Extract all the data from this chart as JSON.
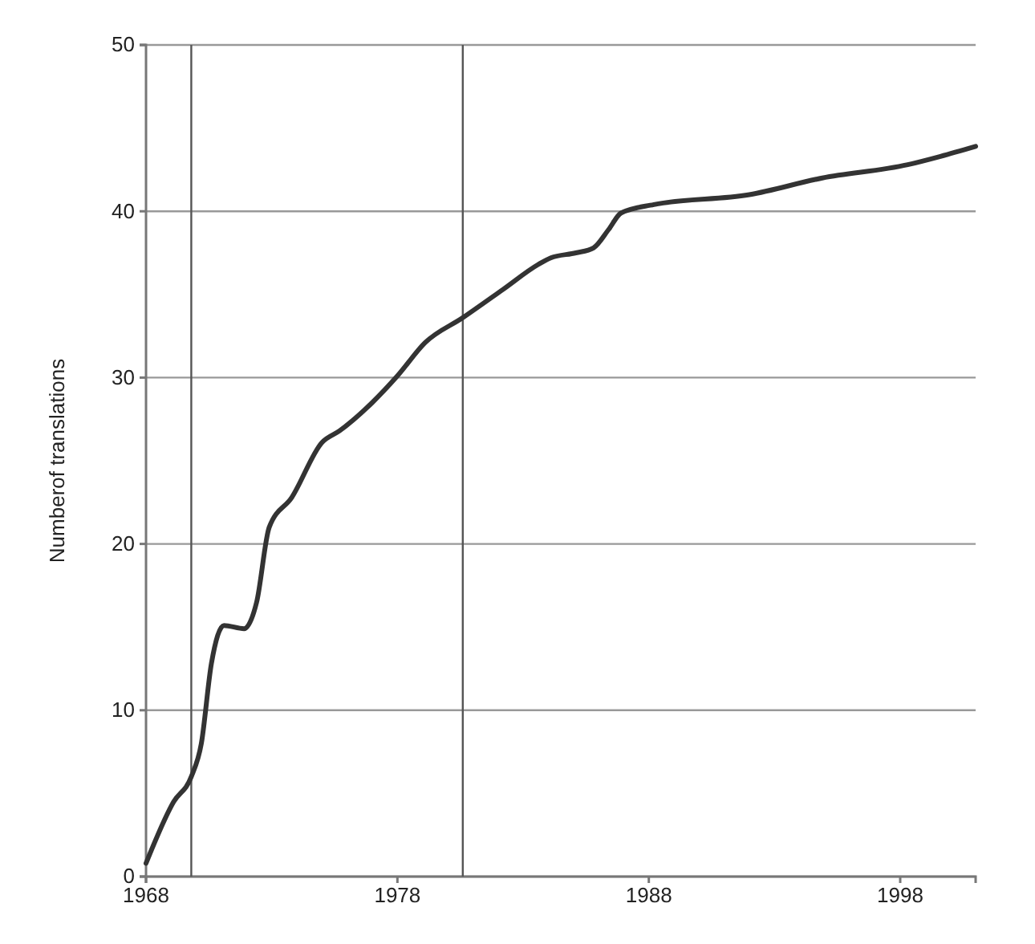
{
  "chart_data": {
    "type": "line",
    "ylabel": "Numberof translations",
    "x": [
      1968,
      1969.1,
      1969.8,
      1970.2,
      1970.6,
      1971.1,
      1971.9,
      1972.4,
      1972.9,
      1973.8,
      1975.0,
      1975.7,
      1977.0,
      1978.0,
      1979.1,
      1980.6,
      1982.2,
      1983.6,
      1984.1,
      1985.1,
      1985.8,
      1986.4,
      1986.9,
      1988.2,
      1992.0,
      1994.9,
      1998.3,
      1999.6,
      2001.0
    ],
    "series": [
      {
        "color": "#333333",
        "values": [
          0.8,
          4.5,
          6.0,
          8.0,
          12.8,
          15.1,
          14.9,
          16.5,
          21.0,
          22.8,
          26.1,
          26.8,
          28.5,
          30.1,
          32.1,
          33.6,
          35.3,
          36.8,
          37.2,
          37.5,
          37.8,
          38.9,
          39.9,
          40.4,
          41.0,
          42.0,
          42.8,
          43.3,
          43.9
        ]
      }
    ],
    "xlim": [
      1968,
      2001
    ],
    "xticks": [
      1968,
      1978,
      1988,
      1998
    ],
    "ylim": [
      0,
      50
    ],
    "yticks": [
      0,
      10,
      20,
      30,
      40,
      50
    ],
    "grid": "y",
    "marker": "none",
    "line_style": "solid",
    "ref_lines": [
      {
        "axis": "x",
        "value": 1969.8,
        "color": "#555555"
      },
      {
        "axis": "x",
        "value": 1980.6,
        "color": "#555555"
      }
    ]
  }
}
